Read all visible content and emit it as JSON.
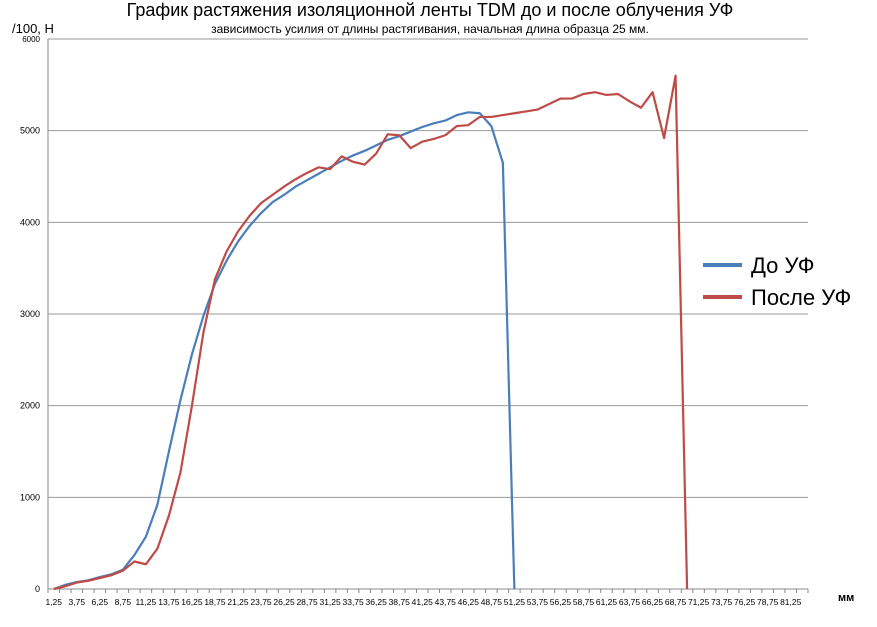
{
  "chart_data": {
    "type": "line",
    "title": "График растяжения изоляционной ленты TDM до и после облучения УФ",
    "subtitle": "зависимость усилия от длины растягивания, начальная длина образца 25 мм.",
    "ylabel": "/100, Н",
    "xlabel": "мм",
    "ylim": [
      0,
      6000
    ],
    "yticks": [
      "0",
      "1000",
      "2000",
      "3000",
      "4000",
      "5000",
      "6000"
    ],
    "x_step": 1.25,
    "x_count": 66,
    "grid": true,
    "legend_position": "right",
    "series": [
      {
        "name": "До УФ",
        "color": "#4a7ebb",
        "values": [
          0,
          45,
          75,
          95,
          130,
          160,
          210,
          370,
          570,
          920,
          1500,
          2060,
          2560,
          2980,
          3330,
          3580,
          3790,
          3960,
          4100,
          4220,
          4300,
          4390,
          4460,
          4530,
          4600,
          4670,
          4730,
          4780,
          4840,
          4900,
          4940,
          4990,
          5040,
          5080,
          5110,
          5170,
          5200,
          5190,
          5050,
          4650,
          0
        ]
      },
      {
        "name": "После УФ",
        "color": "#be4b48",
        "values": [
          0,
          30,
          70,
          90,
          120,
          150,
          200,
          300,
          270,
          440,
          800,
          1270,
          2000,
          2800,
          3380,
          3680,
          3900,
          4070,
          4210,
          4300,
          4390,
          4470,
          4540,
          4600,
          4580,
          4720,
          4660,
          4630,
          4750,
          4960,
          4950,
          4810,
          4880,
          4910,
          4950,
          5050,
          5060,
          5150,
          5150,
          5170,
          5190,
          5210,
          5230,
          5290,
          5350,
          5350,
          5400,
          5420,
          5390,
          5400,
          5320,
          5250,
          5420,
          4920,
          5600,
          0
        ]
      }
    ]
  }
}
